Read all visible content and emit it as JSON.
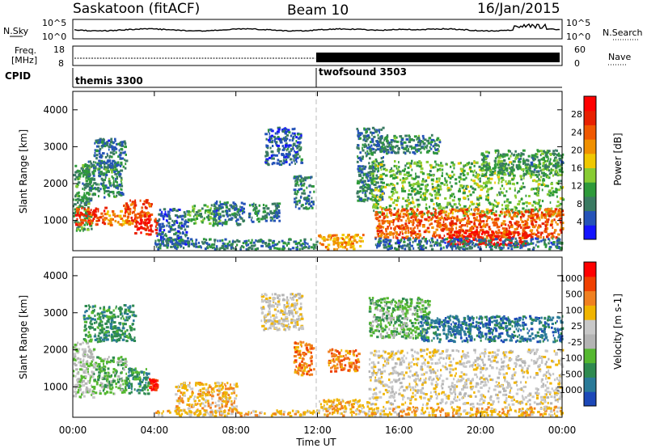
{
  "header": {
    "station": "Saskatoon (fitACF)",
    "beam": "Beam 10",
    "date": "16/Jan/2015"
  },
  "noise_panel": {
    "left_label": "N.Sky",
    "right_label": "N.Search",
    "left_ticks": [
      "10^5",
      "10^0"
    ],
    "right_ticks": [
      "10^5",
      "10^0"
    ]
  },
  "freq_panel": {
    "left_label_line1": "Freq.",
    "left_label_line2": "[MHz]",
    "right_label": "Nave",
    "left_ticks": [
      "18",
      "8"
    ],
    "right_ticks": [
      "60",
      "0"
    ]
  },
  "cpid_panel": {
    "label": "CPID",
    "programs": [
      {
        "name": "themis 3300",
        "start_hour": 0,
        "end_hour": 12
      },
      {
        "name": "twofsound 3503",
        "start_hour": 12,
        "end_hour": 24
      }
    ]
  },
  "time_axis": {
    "label": "Time UT",
    "ticks": [
      "00:00",
      "04:00",
      "08:00",
      "12:00",
      "16:00",
      "20:00",
      "00:00"
    ]
  },
  "colors": {
    "power_scale": [
      "#1414ff",
      "#2553b8",
      "#3a7a62",
      "#2e9a3a",
      "#88cc33",
      "#f0c800",
      "#f09000",
      "#f05800",
      "#e82000",
      "#ff0000"
    ],
    "velocity_scale": [
      "#1c48b8",
      "#2a7a98",
      "#2e8a50",
      "#55b830",
      "#b4b4b4",
      "#c8c8c8",
      "#f0b400",
      "#f08020",
      "#f04000",
      "#ff0000"
    ]
  },
  "chart_data": [
    {
      "type": "heatmap",
      "name": "Power",
      "xlabel": "Time UT",
      "ylabel": "Slant Range [km]",
      "xlim": [
        0,
        24
      ],
      "ylim": [
        180,
        4500
      ],
      "y_ticks": [
        1000,
        2000,
        3000,
        4000
      ],
      "colorbar_label": "Power [dB]",
      "colorbar_range": [
        0,
        32
      ],
      "colorbar_ticks": [
        4,
        8,
        12,
        16,
        20,
        24,
        28
      ],
      "regions": [
        {
          "t0": 0.0,
          "t1": 0.9,
          "r0": 700,
          "r1": 2500,
          "v": 10
        },
        {
          "t0": 0.1,
          "t1": 1.6,
          "r0": 850,
          "r1": 1350,
          "v": 26
        },
        {
          "t0": 1.6,
          "t1": 2.8,
          "r0": 850,
          "r1": 1250,
          "v": 20
        },
        {
          "t0": 2.4,
          "t1": 3.8,
          "r0": 900,
          "r1": 1550,
          "v": 25
        },
        {
          "t0": 3.0,
          "t1": 4.1,
          "r0": 600,
          "r1": 1050,
          "v": 28
        },
        {
          "t0": 0.5,
          "t1": 2.4,
          "r0": 1600,
          "r1": 2600,
          "v": 9
        },
        {
          "t0": 1.0,
          "t1": 2.6,
          "r0": 2400,
          "r1": 3200,
          "v": 7
        },
        {
          "t0": 4.1,
          "t1": 5.6,
          "r0": 300,
          "r1": 1300,
          "v": 6
        },
        {
          "t0": 5.6,
          "t1": 7.2,
          "r0": 900,
          "r1": 1400,
          "v": 12
        },
        {
          "t0": 6.8,
          "t1": 8.4,
          "r0": 850,
          "r1": 1500,
          "v": 7
        },
        {
          "t0": 9.4,
          "t1": 11.2,
          "r0": 2500,
          "r1": 3500,
          "v": 6
        },
        {
          "t0": 8.6,
          "t1": 10.1,
          "r0": 950,
          "r1": 1450,
          "v": 8
        },
        {
          "t0": 10.8,
          "t1": 11.8,
          "r0": 1300,
          "r1": 2200,
          "v": 8
        },
        {
          "t0": 4.0,
          "t1": 12.0,
          "r0": 200,
          "r1": 480,
          "v": 8
        },
        {
          "t0": 12.0,
          "t1": 14.2,
          "r0": 200,
          "r1": 600,
          "v": 20
        },
        {
          "t0": 13.9,
          "t1": 15.2,
          "r0": 1500,
          "r1": 3500,
          "v": 8
        },
        {
          "t0": 14.6,
          "t1": 24.0,
          "r0": 1100,
          "r1": 2600,
          "v": 13
        },
        {
          "t0": 14.8,
          "t1": 24.0,
          "r0": 500,
          "r1": 1300,
          "v": 24
        },
        {
          "t0": 18.3,
          "t1": 22.3,
          "r0": 300,
          "r1": 700,
          "v": 30
        },
        {
          "t0": 15.0,
          "t1": 18.0,
          "r0": 2800,
          "r1": 3300,
          "v": 9
        },
        {
          "t0": 20.0,
          "t1": 24.0,
          "r0": 2200,
          "r1": 2900,
          "v": 10
        },
        {
          "t0": 14.8,
          "t1": 24.0,
          "r0": 200,
          "r1": 500,
          "v": 7
        }
      ]
    },
    {
      "type": "heatmap",
      "name": "Velocity",
      "xlabel": "Time UT",
      "ylabel": "Slant Range [km]",
      "xlim": [
        0,
        24
      ],
      "ylim": [
        180,
        4500
      ],
      "y_ticks": [
        1000,
        2000,
        3000,
        4000
      ],
      "colorbar_label": "Velocity [m s-1]",
      "colorbar_ticks": [
        "1000",
        "500",
        "100",
        "25",
        "-25",
        "-100",
        "-500",
        "-1000"
      ],
      "regions": [
        {
          "t0": 0.0,
          "t1": 1.0,
          "r0": 700,
          "r1": 2200,
          "v": 4
        },
        {
          "t0": 1.0,
          "t1": 2.6,
          "r0": 800,
          "r1": 1800,
          "v": 3
        },
        {
          "t0": 2.6,
          "t1": 3.7,
          "r0": 800,
          "r1": 1500,
          "v": 2
        },
        {
          "t0": 3.7,
          "t1": 4.1,
          "r0": 900,
          "r1": 1200,
          "v": 9
        },
        {
          "t0": 0.5,
          "t1": 3.0,
          "r0": 2200,
          "r1": 3200,
          "v": 2
        },
        {
          "t0": 5.0,
          "t1": 8.0,
          "r0": 300,
          "r1": 1100,
          "v": 6
        },
        {
          "t0": 9.2,
          "t1": 11.2,
          "r0": 2500,
          "r1": 3500,
          "v": 5
        },
        {
          "t0": 10.8,
          "t1": 11.8,
          "r0": 1300,
          "r1": 2200,
          "v": 7
        },
        {
          "t0": 12.0,
          "t1": 14.5,
          "r0": 200,
          "r1": 650,
          "v": 6
        },
        {
          "t0": 4.0,
          "t1": 12.0,
          "r0": 200,
          "r1": 350,
          "v": 6
        },
        {
          "t0": 14.5,
          "t1": 24.0,
          "r0": 500,
          "r1": 2000,
          "v": 5
        },
        {
          "t0": 14.5,
          "t1": 17.5,
          "r0": 2300,
          "r1": 3400,
          "v": 3
        },
        {
          "t0": 17.0,
          "t1": 24.0,
          "r0": 2200,
          "r1": 2900,
          "v": 1
        },
        {
          "t0": 12.5,
          "t1": 14.0,
          "r0": 1400,
          "r1": 2000,
          "v": 7
        },
        {
          "t0": 14.5,
          "t1": 24.0,
          "r0": 200,
          "r1": 450,
          "v": 6
        }
      ]
    }
  ]
}
